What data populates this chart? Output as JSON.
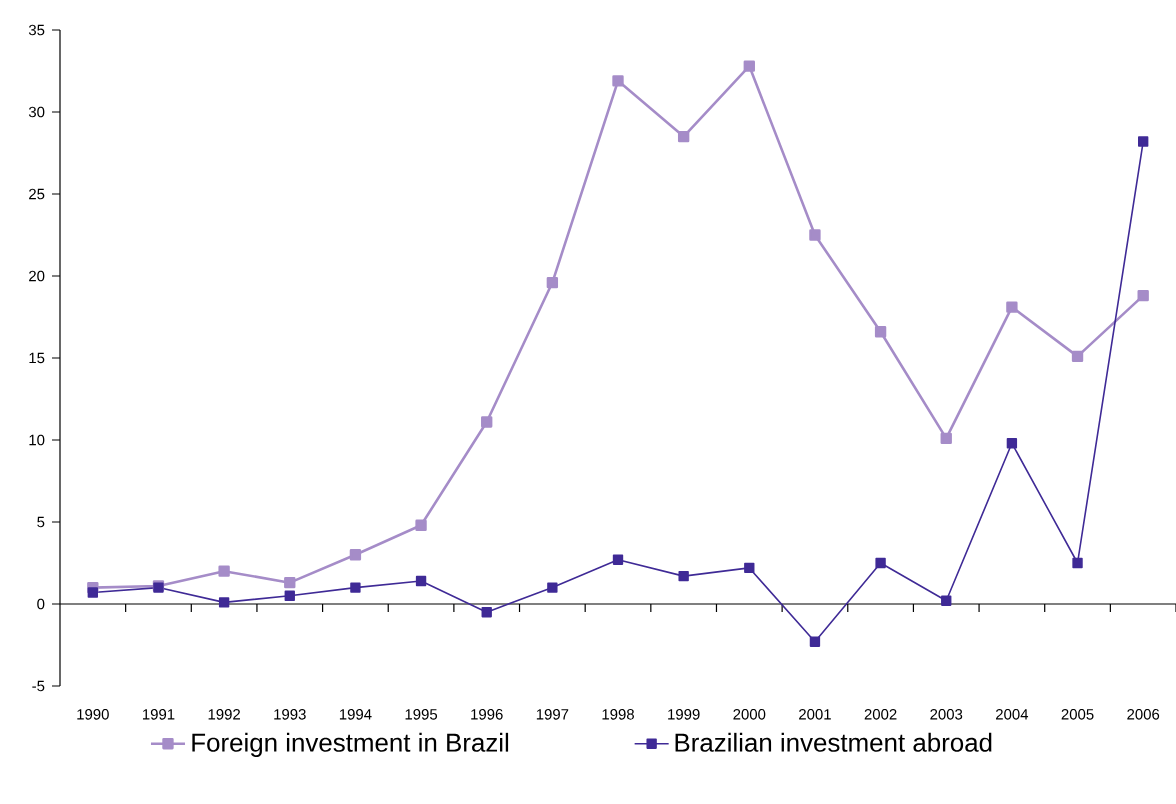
{
  "chart_data": {
    "type": "line",
    "categories": [
      "1990",
      "1991",
      "1992",
      "1993",
      "1994",
      "1995",
      "1996",
      "1997",
      "1998",
      "1999",
      "2000",
      "2001",
      "2002",
      "2003",
      "2004",
      "2005",
      "2006"
    ],
    "series": [
      {
        "name": "Foreign investment in Brazil",
        "color": "#a58cc8",
        "values": [
          1.0,
          1.1,
          2.0,
          1.3,
          3.0,
          4.8,
          11.1,
          19.6,
          31.9,
          28.5,
          32.8,
          22.5,
          16.6,
          10.1,
          18.1,
          15.1,
          18.8
        ]
      },
      {
        "name": "Brazilian investment abroad",
        "color": "#3f2a96",
        "values": [
          0.7,
          1.0,
          0.1,
          0.5,
          1.0,
          1.4,
          -0.5,
          1.0,
          2.7,
          1.7,
          2.2,
          -2.3,
          2.5,
          0.2,
          9.8,
          2.5,
          28.2
        ]
      }
    ],
    "ylim": [
      -5,
      35
    ],
    "yticks": [
      -5,
      0,
      5,
      10,
      15,
      20,
      25,
      30,
      35
    ],
    "legend": "bottom",
    "marker": "square",
    "line_style": "solid"
  }
}
